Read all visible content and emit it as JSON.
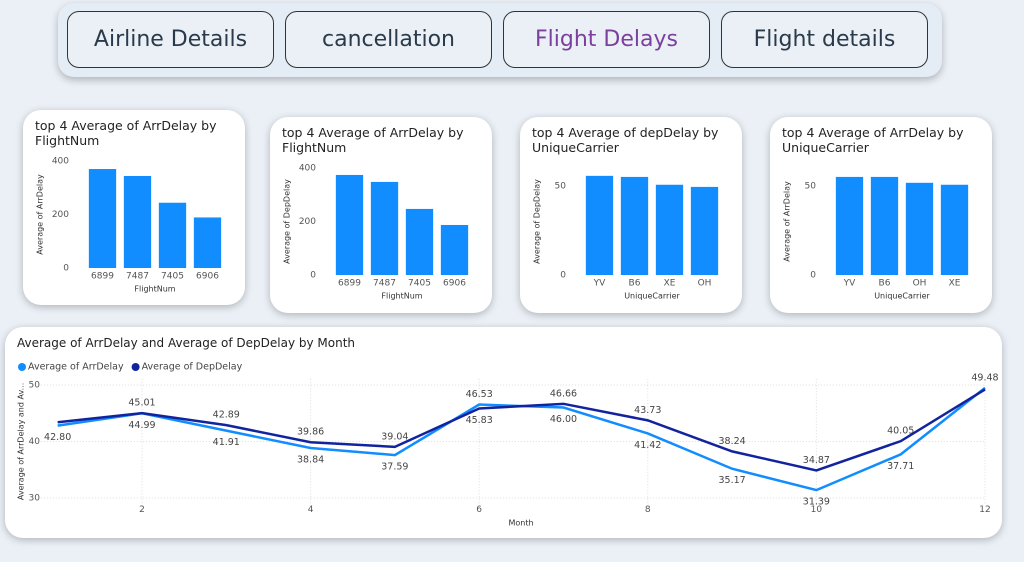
{
  "nav": {
    "buttons": [
      "Airline Details",
      "cancellation",
      "Flight Delays",
      "Flight details"
    ],
    "active": 2
  },
  "chart_data": [
    {
      "type": "bar",
      "title": "top 4 Average of ArrDelay by FlightNum",
      "x_label": "FlightNum",
      "y_label": "Average of ArrDelay",
      "categories": [
        "6899",
        "7487",
        "7405",
        "6906"
      ],
      "values": [
        370,
        344,
        244,
        189
      ],
      "color": "#118dff",
      "ylim": [
        0,
        400
      ],
      "yticks": [
        0,
        200,
        400
      ]
    },
    {
      "type": "bar",
      "title": "top 4 Average of ArrDelay by FlightNum",
      "x_label": "FlightNum",
      "y_label": "Average of DepDelay",
      "categories": [
        "6899",
        "7487",
        "7405",
        "6906"
      ],
      "values": [
        374,
        348,
        247,
        187
      ],
      "color": "#118dff",
      "ylim": [
        0,
        400
      ],
      "yticks": [
        0,
        200,
        400
      ]
    },
    {
      "type": "bar",
      "title": "top 4 Average of depDelay by UniqueCarrier",
      "x_label": "UniqueCarrier",
      "y_label": "Average of DepDelay",
      "categories": [
        "YV",
        "B6",
        "XE",
        "OH"
      ],
      "values": [
        55.6,
        55,
        50.6,
        49.4
      ],
      "color": "#118dff",
      "ylim": [
        0,
        60
      ],
      "yticks": [
        0,
        50
      ]
    },
    {
      "type": "bar",
      "title": "top 4 Average of ArrDelay by UniqueCarrier",
      "x_label": "UniqueCarrier",
      "y_label": "Average of ArrDelay",
      "categories": [
        "YV",
        "B6",
        "OH",
        "XE"
      ],
      "values": [
        55,
        55,
        51.7,
        50.6
      ],
      "color": "#118dff",
      "ylim": [
        0,
        60
      ],
      "yticks": [
        0,
        50
      ]
    },
    {
      "type": "line",
      "title": "Average of ArrDelay and Average of DepDelay by Month",
      "x_label": "Month",
      "y_label": "Average of ArrDelay and Av...",
      "x": [
        1,
        2,
        3,
        4,
        5,
        6,
        7,
        8,
        9,
        10,
        11,
        12
      ],
      "series": [
        {
          "name": "Average of ArrDelay",
          "color": "#118dff",
          "values": [
            42.8,
            44.99,
            41.91,
            38.84,
            37.59,
            46.53,
            46.0,
            41.42,
            35.17,
            31.39,
            37.71,
            49.48
          ],
          "value_labels": [
            "42.80",
            "44.99",
            "41.91",
            "38.84",
            "37.59",
            "46.53",
            "46.00",
            "41.42",
            "35.17",
            "31.39",
            "37.71",
            "49.48"
          ]
        },
        {
          "name": "Average of DepDelay",
          "color": "#12239e",
          "values": [
            43.4,
            45.01,
            42.89,
            39.86,
            39.04,
            45.83,
            46.66,
            43.73,
            38.24,
            34.87,
            40.05,
            49.2
          ],
          "value_labels": [
            null,
            "45.01",
            "42.89",
            "39.86",
            "39.04",
            "45.83",
            "46.66",
            "43.73",
            "38.24",
            "34.87",
            "40.05",
            null
          ]
        }
      ],
      "xlim": [
        0.8,
        12
      ],
      "xticks": [
        2,
        4,
        6,
        8,
        10,
        12
      ],
      "ylim": [
        29,
        51
      ],
      "yticks": [
        30,
        40,
        50
      ],
      "grid": true
    }
  ]
}
